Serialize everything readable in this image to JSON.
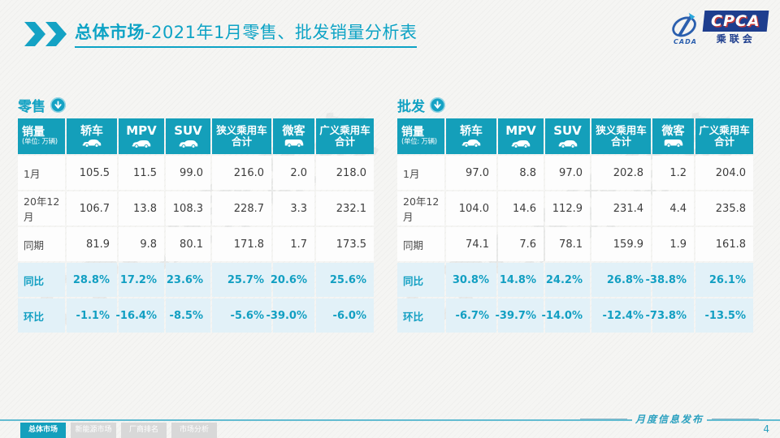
{
  "title": {
    "bold": "总体市场",
    "rest": "-2021年1月零售、批发销量分析表"
  },
  "logo": {
    "cada": "CADA",
    "cpca": "CPCA",
    "sub": "乘联会"
  },
  "watermark": "CPCA乘联会",
  "columns": [
    {
      "title": "销量",
      "subtitle": "(单位: 万辆)"
    },
    {
      "title": "轿车"
    },
    {
      "title": "MPV"
    },
    {
      "title": "SUV"
    },
    {
      "title": "狭义乘用车",
      "title2": "合计"
    },
    {
      "title": "微客"
    },
    {
      "title": "广义乘用车",
      "title2": "合计"
    }
  ],
  "tables": {
    "retail": {
      "label": "零售",
      "rows": [
        {
          "label": "1月",
          "highlight": false,
          "values": [
            "105.5",
            "11.5",
            "99.0",
            "216.0",
            "2.0",
            "218.0"
          ]
        },
        {
          "label": "20年12月",
          "highlight": false,
          "values": [
            "106.7",
            "13.8",
            "108.3",
            "228.7",
            "3.3",
            "232.1"
          ]
        },
        {
          "label": "同期",
          "highlight": false,
          "values": [
            "81.9",
            "9.8",
            "80.1",
            "171.8",
            "1.7",
            "173.5"
          ]
        },
        {
          "label": "同比",
          "highlight": true,
          "values": [
            "28.8%",
            "17.2%",
            "23.6%",
            "25.7%",
            "20.6%",
            "25.6%"
          ]
        },
        {
          "label": "环比",
          "highlight": true,
          "values": [
            "-1.1%",
            "-16.4%",
            "-8.5%",
            "-5.6%",
            "-39.0%",
            "-6.0%"
          ]
        }
      ]
    },
    "wholesale": {
      "label": "批发",
      "rows": [
        {
          "label": "1月",
          "highlight": false,
          "values": [
            "97.0",
            "8.8",
            "97.0",
            "202.8",
            "1.2",
            "204.0"
          ]
        },
        {
          "label": "20年12月",
          "highlight": false,
          "values": [
            "104.0",
            "14.6",
            "112.9",
            "231.4",
            "4.4",
            "235.8"
          ]
        },
        {
          "label": "同期",
          "highlight": false,
          "values": [
            "74.1",
            "7.6",
            "78.1",
            "159.9",
            "1.9",
            "161.8"
          ]
        },
        {
          "label": "同比",
          "highlight": true,
          "values": [
            "30.8%",
            "14.8%",
            "24.2%",
            "26.8%",
            "-38.8%",
            "26.1%"
          ]
        },
        {
          "label": "环比",
          "highlight": true,
          "values": [
            "-6.7%",
            "-39.7%",
            "-14.0%",
            "-12.4%",
            "-73.8%",
            "-13.5%"
          ]
        }
      ]
    }
  },
  "footer": {
    "tabs": [
      {
        "label": "总体市场",
        "active": true
      },
      {
        "label": "新能源市场",
        "active": false
      },
      {
        "label": "厂商排名",
        "active": false
      },
      {
        "label": "市场分析",
        "active": false
      }
    ],
    "publication": "月度信息发布",
    "page": "4"
  },
  "colors": {
    "accent_teal": "#149fba",
    "highlight_row": "#e2f1f8",
    "logo_blue": "#1e3e8e"
  }
}
